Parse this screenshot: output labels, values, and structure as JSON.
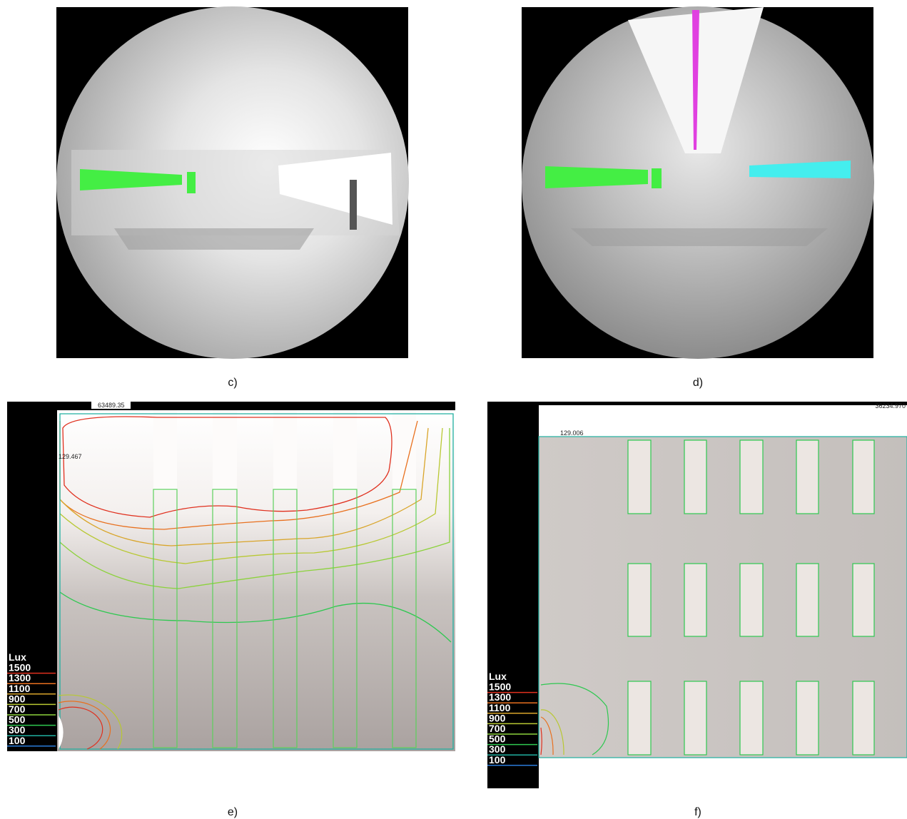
{
  "panels": [
    {
      "label": "c)"
    },
    {
      "label": "d)"
    },
    {
      "label": "e)",
      "max_label": "63489.35",
      "min_label": "129.467",
      "legend": {
        "title": "Lux",
        "levels": [
          1500,
          1300,
          1100,
          900,
          700,
          500,
          300,
          100
        ],
        "colors": [
          "#e0301e",
          "#e8701e",
          "#d9a52a",
          "#b8c832",
          "#8cd23c",
          "#2ec850",
          "#20b0a0",
          "#2a7ad8"
        ]
      }
    },
    {
      "label": "f)",
      "max_label": "36234.970",
      "min_label": "129.006",
      "legend": {
        "title": "Lux",
        "levels": [
          1500,
          1300,
          1100,
          900,
          700,
          500,
          300,
          100
        ],
        "colors": [
          "#e0301e",
          "#e8701e",
          "#d9a52a",
          "#b8c832",
          "#8cd23c",
          "#2ec850",
          "#20b0a0",
          "#2a7ad8"
        ]
      }
    }
  ]
}
